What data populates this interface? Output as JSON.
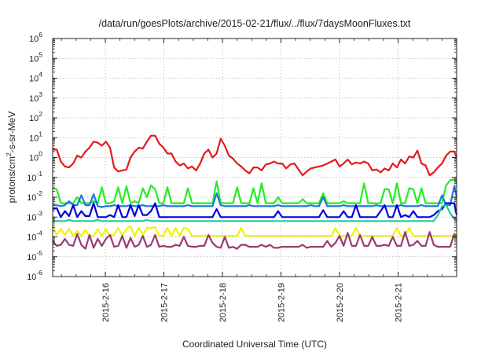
{
  "chart_data": {
    "type": "line",
    "title": "/data/run/goesPlots/archive/2015-02-21/flux/../flux/7daysMoonFluxes.txt",
    "ylabel_parts": [
      "protons/cm",
      "2",
      "-s-sr-MeV"
    ],
    "xlabel": "Coordinated Universal Time (UTC)",
    "y_scale": "log",
    "ylim_exponent": [
      -6,
      6
    ],
    "y_tick_exponents": [
      -6,
      -5,
      -4,
      -3,
      -2,
      -1,
      0,
      1,
      2,
      3,
      4,
      5,
      6
    ],
    "xlim": [
      2015.1315,
      2015.1425
    ],
    "x_range_days": [
      15.1,
      22.0
    ],
    "x_tick_days": [
      16,
      17,
      18,
      19,
      20,
      21
    ],
    "x_tick_labels": [
      "2015-2-16",
      "2015-2-17",
      "2015-2-18",
      "2015-2-19",
      "2015-2-20",
      "2015-2-21"
    ],
    "grid": true,
    "legend": "none",
    "x_days": [
      15.1,
      15.17,
      15.24,
      15.31,
      15.38,
      15.45,
      15.52,
      15.59,
      15.66,
      15.73,
      15.8,
      15.87,
      15.94,
      16.01,
      16.08,
      16.15,
      16.22,
      16.29,
      16.36,
      16.43,
      16.5,
      16.57,
      16.64,
      16.71,
      16.78,
      16.85,
      16.92,
      16.99,
      17.06,
      17.13,
      17.2,
      17.27,
      17.34,
      17.41,
      17.48,
      17.55,
      17.62,
      17.69,
      17.76,
      17.83,
      17.9,
      17.97,
      18.04,
      18.11,
      18.18,
      18.25,
      18.32,
      18.39,
      18.46,
      18.53,
      18.6,
      18.67,
      18.74,
      18.81,
      18.88,
      18.95,
      19.02,
      19.09,
      19.16,
      19.23,
      19.3,
      19.37,
      19.44,
      19.51,
      19.58,
      19.65,
      19.72,
      19.79,
      19.86,
      19.93,
      20.0,
      20.07,
      20.14,
      20.21,
      20.28,
      20.35,
      20.42,
      20.49,
      20.56,
      20.63,
      20.7,
      20.77,
      20.84,
      20.91,
      20.98,
      21.05,
      21.12,
      21.19,
      21.26,
      21.33,
      21.4,
      21.47,
      21.54,
      21.61,
      21.68,
      21.75,
      21.82,
      21.89,
      21.96,
      22.0
    ],
    "series": [
      {
        "color": "#e41a1c",
        "log10_values": [
          0.4,
          0.4,
          -0.2,
          -0.45,
          -0.5,
          -0.3,
          0.1,
          0.0,
          0.3,
          0.5,
          0.8,
          0.75,
          0.6,
          0.8,
          0.5,
          -0.5,
          -0.7,
          -0.65,
          -0.6,
          0.0,
          0.3,
          0.5,
          0.45,
          0.8,
          1.1,
          1.1,
          0.7,
          0.5,
          0.2,
          0.2,
          -0.2,
          -0.4,
          -0.3,
          -0.55,
          -0.45,
          -0.65,
          -0.3,
          0.2,
          0.4,
          0.0,
          0.2,
          0.95,
          0.6,
          0.1,
          -0.05,
          -0.3,
          -0.45,
          -0.65,
          -0.8,
          -0.5,
          -0.5,
          -0.65,
          -0.35,
          -0.3,
          -0.2,
          -0.3,
          -0.3,
          -0.55,
          -0.35,
          -0.3,
          -0.6,
          -0.9,
          -0.7,
          -0.55,
          -0.5,
          -0.45,
          -0.4,
          -0.3,
          -0.2,
          -0.1,
          -0.45,
          -0.3,
          -0.1,
          -0.35,
          -0.25,
          -0.3,
          -0.2,
          -0.3,
          -0.65,
          -0.6,
          -0.75,
          -0.55,
          -0.65,
          -0.3,
          -0.5,
          -0.1,
          -0.3,
          0.05,
          0.0,
          0.35,
          -0.3,
          -0.4,
          -0.9,
          -0.75,
          -0.5,
          -0.3,
          0.1,
          0.3,
          0.3,
          0.0
        ]
      },
      {
        "color": "#22ee22",
        "log10_values": [
          -1.55,
          -1.6,
          -2.3,
          -2.3,
          -2.3,
          -2.3,
          -2.0,
          -2.3,
          -2.3,
          -2.3,
          -2.2,
          -2.3,
          -1.5,
          -2.3,
          -2.3,
          -2.2,
          -1.5,
          -2.3,
          -1.45,
          -2.3,
          -2.2,
          -2.3,
          -1.55,
          -2.0,
          -1.4,
          -1.6,
          -2.3,
          -2.3,
          -1.5,
          -2.3,
          -2.3,
          -2.3,
          -2.3,
          -1.55,
          -2.3,
          -2.3,
          -2.3,
          -2.3,
          -2.3,
          -2.3,
          -1.2,
          -2.3,
          -2.3,
          -2.3,
          -2.3,
          -1.5,
          -2.3,
          -2.3,
          -2.3,
          -1.55,
          -2.3,
          -1.3,
          -2.3,
          -2.3,
          -2.3,
          -2.0,
          -2.3,
          -2.3,
          -2.3,
          -2.3,
          -2.3,
          -2.1,
          -2.3,
          -2.3,
          -2.3,
          -2.3,
          -1.8,
          -2.3,
          -2.3,
          -2.3,
          -2.3,
          -2.2,
          -2.3,
          -2.3,
          -2.3,
          -2.3,
          -1.3,
          -2.3,
          -2.3,
          -2.3,
          -2.3,
          -1.6,
          -1.6,
          -2.3,
          -1.3,
          -2.3,
          -2.3,
          -1.55,
          -1.6,
          -2.3,
          -1.55,
          -2.3,
          -2.3,
          -2.3,
          -2.3,
          -2.3,
          -1.4,
          -1.15,
          -1.1,
          -1.3
        ]
      },
      {
        "color": "#1e78dc",
        "log10_values": [
          -2.4,
          -2.4,
          -2.45,
          -2.4,
          -2.2,
          -2.4,
          -2.4,
          -1.9,
          -2.4,
          -2.4,
          -1.85,
          -2.45,
          -2.5,
          -2.45,
          -2.45,
          -2.4,
          -2.45,
          -2.45,
          -2.45,
          -2.4,
          -2.45,
          -2.45,
          -2.4,
          -2.45,
          -2.45,
          -2.45,
          -2.45,
          -2.4,
          -2.45,
          -2.45,
          -2.45,
          -2.45,
          -2.45,
          -2.4,
          -2.45,
          -2.45,
          -2.45,
          -2.45,
          -2.45,
          -2.45,
          -1.8,
          -2.4,
          -2.45,
          -2.45,
          -2.45,
          -2.45,
          -2.45,
          -2.45,
          -2.4,
          -2.45,
          -2.45,
          -2.45,
          -2.45,
          -2.45,
          -2.45,
          -2.4,
          -2.45,
          -2.45,
          -2.45,
          -2.45,
          -2.45,
          -2.45,
          -2.45,
          -2.4,
          -2.45,
          -2.45,
          -2.0,
          -2.45,
          -2.45,
          -2.45,
          -2.45,
          -2.4,
          -2.45,
          -2.45,
          -2.45,
          -2.45,
          -2.45,
          -2.45,
          -2.45,
          -2.4,
          -2.45,
          -2.45,
          -2.45,
          -2.45,
          -2.45,
          -2.4,
          -2.45,
          -2.45,
          -2.45,
          -2.45,
          -2.4,
          -2.45,
          -2.45,
          -2.45,
          -2.45,
          -1.9,
          -2.4,
          -2.4,
          -1.45,
          -2.0
        ]
      },
      {
        "color": "#0000dd",
        "log10_values": [
          -2.6,
          -2.55,
          -3.0,
          -2.7,
          -2.95,
          -2.4,
          -3.0,
          -2.7,
          -2.95,
          -2.95,
          -2.3,
          -3.0,
          -3.0,
          -3.0,
          -2.9,
          -3.0,
          -2.4,
          -3.0,
          -3.0,
          -2.4,
          -2.95,
          -2.4,
          -2.9,
          -2.9,
          -2.7,
          -2.3,
          -3.0,
          -3.0,
          -3.0,
          -3.0,
          -3.0,
          -3.0,
          -3.0,
          -3.0,
          -3.0,
          -3.0,
          -3.0,
          -3.0,
          -3.0,
          -3.0,
          -2.6,
          -3.0,
          -3.0,
          -3.0,
          -3.0,
          -3.0,
          -3.0,
          -3.0,
          -3.0,
          -3.0,
          -3.0,
          -3.0,
          -3.0,
          -3.0,
          -3.0,
          -2.7,
          -3.0,
          -3.0,
          -3.0,
          -3.0,
          -3.0,
          -3.0,
          -3.0,
          -3.0,
          -3.0,
          -3.0,
          -2.65,
          -3.0,
          -3.0,
          -3.0,
          -3.0,
          -2.7,
          -3.0,
          -3.0,
          -2.4,
          -3.0,
          -3.0,
          -3.0,
          -3.0,
          -3.0,
          -2.7,
          -2.4,
          -3.0,
          -3.0,
          -2.4,
          -3.0,
          -2.9,
          -3.0,
          -2.7,
          -3.0,
          -3.0,
          -3.0,
          -3.0,
          -2.9,
          -2.7,
          -2.6,
          -2.3,
          -2.3,
          -2.3,
          -2.9
        ]
      },
      {
        "color": "#22c9a0",
        "log10_values": [
          -3.2,
          -3.2,
          -3.2,
          -3.2,
          -3.15,
          -3.2,
          -3.2,
          -3.2,
          -3.2,
          -3.2,
          -3.2,
          -3.15,
          -3.2,
          -3.2,
          -3.2,
          -3.2,
          -3.2,
          -3.2,
          -3.2,
          -3.2,
          -3.2,
          -3.2,
          -3.2,
          -3.15,
          -3.2,
          -3.2,
          -3.2,
          -3.2,
          -3.2,
          -3.2,
          -3.2,
          -3.2,
          -3.2,
          -3.2,
          -3.2,
          -3.2,
          -3.2,
          -3.2,
          -3.2,
          -3.2,
          -3.2,
          -3.2,
          -3.2,
          -3.2,
          -3.2,
          -3.2,
          -3.2,
          -3.2,
          -3.2,
          -3.2,
          -3.2,
          -3.2,
          -3.2,
          -3.2,
          -3.2,
          -3.2,
          -3.2,
          -3.2,
          -3.2,
          -3.2,
          -3.2,
          -3.2,
          -3.2,
          -3.2,
          -3.2,
          -3.2,
          -3.2,
          -3.2,
          -3.2,
          -3.2,
          -3.2,
          -3.2,
          -3.2,
          -3.2,
          -3.2,
          -3.2,
          -3.2,
          -3.2,
          -3.2,
          -3.2,
          -3.2,
          -3.2,
          -3.2,
          -3.2,
          -3.2,
          -3.2,
          -3.2,
          -3.2,
          -3.2,
          -3.2,
          -3.2,
          -3.2,
          -3.2,
          -3.2,
          -2.9,
          -2.45,
          -2.4,
          -2.8,
          -3.1,
          -3.15
        ]
      },
      {
        "color": "#f2f200",
        "log10_values": [
          -3.45,
          -3.9,
          -3.6,
          -3.9,
          -3.6,
          -3.95,
          -3.7,
          -3.95,
          -3.65,
          -3.95,
          -3.95,
          -3.6,
          -3.95,
          -3.6,
          -3.95,
          -3.9,
          -3.55,
          -3.95,
          -3.6,
          -3.45,
          -3.95,
          -3.55,
          -3.9,
          -3.55,
          -3.55,
          -3.5,
          -3.95,
          -3.95,
          -3.55,
          -3.95,
          -3.55,
          -3.95,
          -3.55,
          -3.6,
          -3.95,
          -3.95,
          -3.95,
          -3.95,
          -3.95,
          -3.95,
          -3.95,
          -3.95,
          -3.95,
          -3.95,
          -3.95,
          -3.95,
          -3.55,
          -3.95,
          -3.95,
          -3.95,
          -3.95,
          -3.95,
          -3.95,
          -3.95,
          -3.95,
          -3.95,
          -3.95,
          -3.95,
          -3.95,
          -3.95,
          -3.95,
          -3.95,
          -3.95,
          -3.95,
          -3.95,
          -3.95,
          -3.95,
          -3.95,
          -3.95,
          -3.55,
          -3.95,
          -3.95,
          -3.95,
          -3.95,
          -3.55,
          -3.95,
          -3.95,
          -3.95,
          -3.95,
          -3.95,
          -3.95,
          -3.95,
          -3.95,
          -3.95,
          -3.55,
          -3.95,
          -3.95,
          -3.55,
          -3.95,
          -3.95,
          -3.95,
          -3.95,
          -3.95,
          -3.95,
          -3.95,
          -3.95,
          -3.95,
          -3.95,
          -3.95,
          -3.9
        ]
      },
      {
        "color": "#9b3a6e",
        "log10_values": [
          -4.2,
          -4.45,
          -4.4,
          -4.1,
          -4.4,
          -4.45,
          -3.85,
          -4.4,
          -4.6,
          -3.9,
          -4.55,
          -4.1,
          -4.45,
          -4.1,
          -3.9,
          -4.5,
          -4.45,
          -3.95,
          -4.55,
          -4.05,
          -4.5,
          -4.4,
          -3.95,
          -4.5,
          -4.4,
          -3.9,
          -4.5,
          -4.45,
          -4.5,
          -4.5,
          -4.4,
          -4.45,
          -4.0,
          -4.45,
          -4.5,
          -4.5,
          -4.45,
          -4.45,
          -3.9,
          -4.3,
          -4.5,
          -4.55,
          -4.0,
          -4.55,
          -4.5,
          -4.6,
          -4.4,
          -4.4,
          -4.5,
          -4.5,
          -4.5,
          -4.4,
          -4.5,
          -4.4,
          -4.55,
          -4.55,
          -4.5,
          -4.5,
          -4.5,
          -4.5,
          -4.5,
          -4.4,
          -4.55,
          -4.5,
          -4.5,
          -4.5,
          -4.5,
          -4.2,
          -4.5,
          -4.3,
          -3.95,
          -4.45,
          -3.8,
          -4.45,
          -4.45,
          -3.9,
          -4.45,
          -4.45,
          -4.0,
          -4.45,
          -4.45,
          -4.4,
          -4.45,
          -4.0,
          -4.45,
          -4.45,
          -3.75,
          -4.45,
          -4.4,
          -4.2,
          -4.45,
          -4.45,
          -3.75,
          -4.4,
          -4.5,
          -4.5,
          -4.5,
          -4.5,
          -3.85,
          -4.0
        ]
      }
    ]
  }
}
